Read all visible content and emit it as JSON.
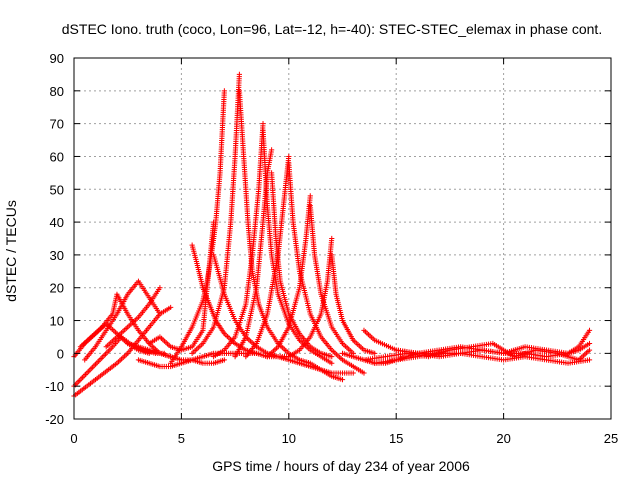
{
  "chart_data": {
    "type": "scatter",
    "title": "dSTEC Iono. truth (coco, Lon=96, Lat=-12, h=-40): STEC-STEC_elemax in phase cont.",
    "xlabel": "GPS time / hours of day 234 of year 2006",
    "ylabel": "dSTEC  / TECUs",
    "xlim": [
      0,
      25
    ],
    "ylim": [
      -20,
      90
    ],
    "x_ticks": [
      "0",
      "5",
      "10",
      "15",
      "20",
      "25"
    ],
    "y_ticks": [
      "-20",
      "-10",
      "0",
      "10",
      "20",
      "30",
      "40",
      "50",
      "60",
      "70",
      "80",
      "90"
    ],
    "grid": true,
    "marker": "+",
    "color": "#ff0000",
    "series": [
      {
        "x": [
          0.0,
          0.5,
          1.0,
          1.5,
          2.0,
          2.5,
          3.0,
          3.5
        ],
        "y": [
          -1,
          3,
          6,
          9,
          6,
          3,
          1,
          0
        ]
      },
      {
        "x": [
          0.0,
          0.6,
          1.2,
          1.8,
          2.2,
          2.6,
          3.2,
          3.8,
          4.2
        ],
        "y": [
          -10,
          -6,
          -2,
          2,
          5,
          3,
          1,
          0,
          0
        ]
      },
      {
        "x": [
          0.0,
          1.0,
          2.0,
          2.5,
          3.0,
          3.5,
          4.0,
          4.5
        ],
        "y": [
          -13,
          -8,
          -3,
          0,
          4,
          8,
          12,
          14
        ]
      },
      {
        "x": [
          0.5,
          1.0,
          1.5,
          2.0,
          2.5,
          3.0,
          3.5,
          4.0
        ],
        "y": [
          -2,
          2,
          7,
          12,
          18,
          22,
          17,
          12
        ]
      },
      {
        "x": [
          0.3,
          0.8,
          1.3,
          1.8,
          2.0,
          2.5,
          3.0,
          3.5,
          4.0,
          4.5
        ],
        "y": [
          2,
          5,
          8,
          12,
          18,
          12,
          7,
          3,
          0,
          -1
        ]
      },
      {
        "x": [
          1.5,
          2.0,
          2.5,
          3.0,
          3.5,
          4.0
        ],
        "y": [
          2,
          5,
          8,
          11,
          15,
          20
        ]
      },
      {
        "x": [
          2.5,
          3.0,
          3.5,
          4.0,
          4.5,
          5.0,
          5.5,
          6.0,
          6.5,
          7.0
        ],
        "y": [
          3,
          2,
          1,
          0,
          -1,
          -2,
          -2,
          -3,
          -3,
          -2
        ]
      },
      {
        "x": [
          3.0,
          3.5,
          4.0,
          4.5,
          5.0,
          5.5,
          6.0,
          6.5,
          7.0,
          7.5,
          8.0,
          8.5
        ],
        "y": [
          -2,
          -3,
          -4,
          -4,
          -3,
          -2,
          -1,
          0,
          0,
          0,
          0,
          0
        ]
      },
      {
        "x": [
          3.5,
          4.0,
          4.5,
          5.0,
          5.5,
          6.0,
          6.5
        ],
        "y": [
          3,
          5,
          2,
          1,
          2,
          7,
          40
        ]
      },
      {
        "x": [
          5.5,
          5.7,
          6.0,
          6.3,
          6.6,
          7.0,
          7.5,
          8.0,
          8.5,
          9.0,
          9.5,
          10.0
        ],
        "y": [
          33,
          28,
          20,
          15,
          10,
          6,
          3,
          1,
          0,
          -1,
          -1,
          -1
        ]
      },
      {
        "x": [
          4.5,
          5.0,
          5.5,
          6.0,
          6.2,
          6.4,
          6.6,
          6.8,
          7.0
        ],
        "y": [
          -3,
          2,
          8,
          16,
          22,
          30,
          40,
          55,
          80
        ]
      },
      {
        "x": [
          6.5,
          7.0,
          7.5,
          8.0,
          8.5,
          9.0,
          9.5,
          10.0,
          10.5,
          11.0,
          11.5,
          12.0,
          12.5,
          13.0
        ],
        "y": [
          30,
          18,
          10,
          5,
          2,
          0,
          -1,
          -2,
          -3,
          -4,
          -5,
          -6,
          -6,
          -6
        ]
      },
      {
        "x": [
          5.5,
          6.0,
          6.5,
          7.0,
          7.3,
          7.5,
          7.7
        ],
        "y": [
          0,
          3,
          8,
          20,
          40,
          60,
          85
        ]
      },
      {
        "x": [
          7.7,
          7.9,
          8.1,
          8.3,
          8.6,
          9.0,
          9.5,
          10.0,
          10.5,
          11.0,
          11.5,
          12.0,
          12.5
        ],
        "y": [
          80,
          60,
          40,
          25,
          15,
          8,
          3,
          0,
          -2,
          -3,
          -5,
          -7,
          -8
        ]
      },
      {
        "x": [
          6.5,
          7.0,
          7.5,
          8.0,
          8.3,
          8.6,
          8.8
        ],
        "y": [
          -1,
          1,
          5,
          15,
          30,
          50,
          70
        ]
      },
      {
        "x": [
          8.8,
          9.0,
          9.2,
          9.5,
          10.0,
          10.5,
          11.0,
          11.5,
          12.0
        ],
        "y": [
          68,
          45,
          30,
          18,
          9,
          4,
          1,
          -1,
          -3
        ]
      },
      {
        "x": [
          7.5,
          8.0,
          8.5,
          8.8,
          9.0,
          9.2
        ],
        "y": [
          -1,
          5,
          20,
          40,
          55,
          62
        ]
      },
      {
        "x": [
          9.2,
          9.4,
          9.6,
          10.0,
          10.5,
          11.0,
          11.5,
          12.0
        ],
        "y": [
          55,
          35,
          22,
          12,
          6,
          2,
          0,
          -1
        ]
      },
      {
        "x": [
          8.0,
          8.5,
          9.0,
          9.5,
          9.8,
          10.0
        ],
        "y": [
          -1,
          3,
          12,
          30,
          48,
          60
        ]
      },
      {
        "x": [
          10.0,
          10.2,
          10.5,
          11.0,
          11.5,
          12.0,
          12.5,
          13.0,
          13.5
        ],
        "y": [
          58,
          40,
          25,
          12,
          5,
          1,
          -2,
          -4,
          -6
        ]
      },
      {
        "x": [
          9.0,
          9.5,
          10.0,
          10.5,
          10.8,
          11.0
        ],
        "y": [
          -1,
          2,
          8,
          20,
          35,
          48
        ]
      },
      {
        "x": [
          11.0,
          11.2,
          11.5,
          12.0,
          12.5,
          13.0
        ],
        "y": [
          45,
          30,
          18,
          8,
          3,
          0
        ]
      },
      {
        "x": [
          10.0,
          10.5,
          11.0,
          11.5,
          11.8,
          12.0
        ],
        "y": [
          -1,
          1,
          5,
          12,
          22,
          35
        ]
      },
      {
        "x": [
          12.0,
          12.2,
          12.5,
          13.0,
          13.5,
          14.0
        ],
        "y": [
          30,
          18,
          10,
          4,
          1,
          0
        ]
      },
      {
        "x": [
          13.5,
          14.0,
          15.0,
          16.0,
          17.0,
          18.0,
          19.0,
          20.0,
          21.0,
          22.0,
          23.0,
          23.5,
          24.0
        ],
        "y": [
          7,
          4,
          1,
          0,
          -1,
          0,
          1,
          0,
          0,
          -1,
          0,
          2,
          7
        ]
      },
      {
        "x": [
          13.5,
          14.5,
          15.5,
          16.5,
          17.5,
          18.5,
          19.5,
          20.5,
          21.5,
          22.5,
          23.5,
          24.0
        ],
        "y": [
          -2,
          -1,
          0,
          -1,
          1,
          2,
          3,
          -1,
          1,
          0,
          -2,
          1
        ]
      },
      {
        "x": [
          14.0,
          15.0,
          16.0,
          17.0,
          18.0,
          19.0,
          20.0,
          21.0,
          22.0,
          23.0,
          24.0
        ],
        "y": [
          -3,
          -2,
          -1,
          0,
          0,
          -1,
          -2,
          -1,
          -2,
          -3,
          -2
        ]
      },
      {
        "x": [
          15.0,
          16.0,
          17.0,
          18.0,
          19.0,
          20.0,
          21.0,
          22.0,
          23.0,
          23.5,
          24.0
        ],
        "y": [
          1,
          0,
          1,
          2,
          1,
          0,
          2,
          1,
          0,
          1,
          3
        ]
      },
      {
        "x": [
          12.5,
          13.0,
          13.5,
          14.0,
          14.5,
          15.0,
          15.5,
          16.0,
          16.5,
          17.0
        ],
        "y": [
          0,
          -1,
          -2,
          -3,
          -3,
          -2,
          -1,
          0,
          0,
          0
        ]
      }
    ]
  }
}
